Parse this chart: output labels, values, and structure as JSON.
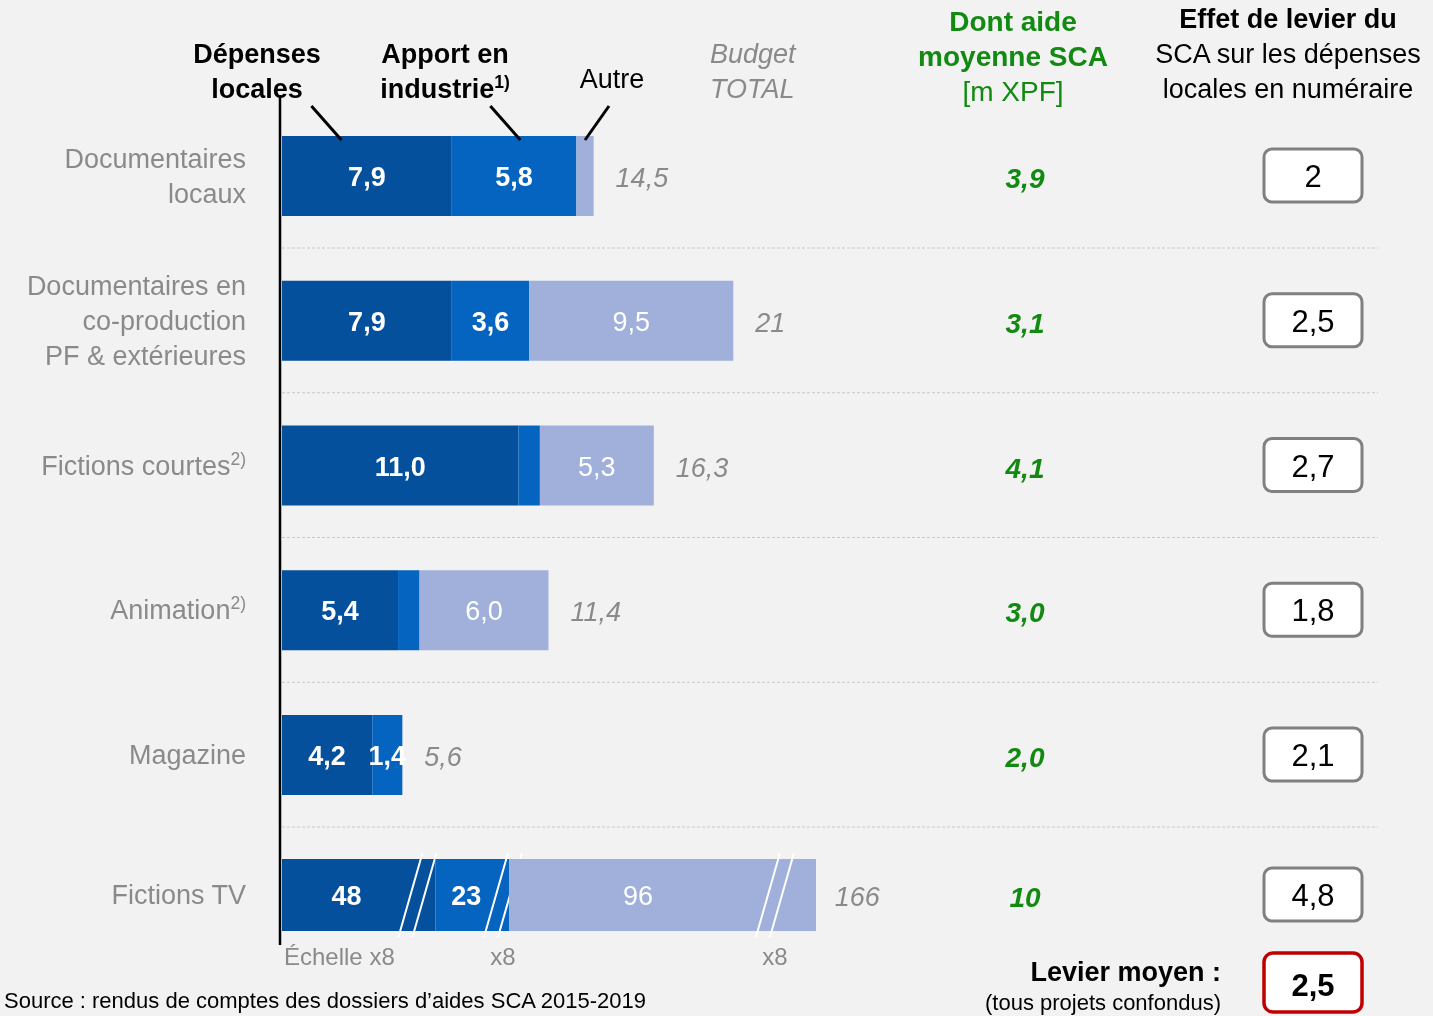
{
  "chart_data": [
    {
      "type": "bar",
      "orientation": "horizontal",
      "stacked": true,
      "grid": true,
      "legend": "top",
      "xlim": [
        0,
        51
      ],
      "categories": [
        "Documentaires\nlocaux",
        "Documentaires en\nco-production\nPF & extérieures",
        "Fictions courtes$^{2)}$",
        "Animation$^{2)}$",
        "Magazine"
      ],
      "series": [
        {
          "name": "Dépenses\nlocales",
          "color": "#04509c",
          "values": [
            7.9,
            7.9,
            11.0,
            5.4,
            4.2
          ],
          "value_labels": [
            "7,9",
            "7,9",
            "11,0",
            "5,4",
            "4,2"
          ]
        },
        {
          "name": "Apport en\nindustrie$^{1)}$",
          "color": "#0564c0",
          "values": [
            5.8,
            3.6,
            1.0,
            1.0,
            1.4
          ],
          "value_labels": [
            "5,8",
            "3,6",
            null,
            null,
            "1,4"
          ]
        },
        {
          "name": "Autre",
          "color": "#a0b0da",
          "values": [
            0.8,
            9.5,
            5.3,
            6.0,
            null
          ],
          "value_labels": [
            null,
            "9,5",
            "5,3",
            "6,0",
            null
          ]
        }
      ],
      "annotations": [
        "Budget\nTOTAL",
        "Source : rendus de comptes des dossiers d’aides SCA 2015-2019",
        "14,5",
        "21",
        "16,3",
        "11,4",
        "5,6"
      ]
    },
    {
      "type": "bar",
      "orientation": "horizontal",
      "stacked": true,
      "categories": [
        "Fictions TV"
      ],
      "series": [
        {
          "color": "#04509c",
          "values": [
            48
          ],
          "value_labels": [
            "48"
          ]
        },
        {
          "color": "#0564c0",
          "values": [
            23
          ],
          "value_labels": [
            "23"
          ]
        },
        {
          "color": "#a0b0da",
          "values": [
            96
          ],
          "value_labels": [
            "96"
          ]
        }
      ],
      "annotations": [
        "Échelle x8",
        "x8",
        "x8",
        {
          "text": "166",
          "x": 166,
          "y": "Fictions TV"
        }
      ]
    },
    {
      "type": "other",
      "title": "Dont aide\nmoyenne SCA\n[m XPF]",
      "categories": [
        null,
        null,
        null,
        null,
        null,
        null
      ],
      "color": "#128a12",
      "value_labels": [
        "3,9",
        "3,1",
        "4,1",
        "3,0",
        "2,0",
        "10"
      ]
    },
    {
      "type": "other",
      "title": "Effet de levier du\nSCA sur les dépenses\nlocales en numéraire",
      "categories": [
        null,
        null,
        null,
        null,
        null,
        null
      ],
      "color": "#808080",
      "value_labels": [
        "2",
        "2,5",
        "2,7",
        "1,8",
        "2,1",
        "4,8"
      ],
      "annotations": [
        "Levier moyen :",
        "(tous projets confondus)",
        "2,5"
      ]
    }
  ]
}
